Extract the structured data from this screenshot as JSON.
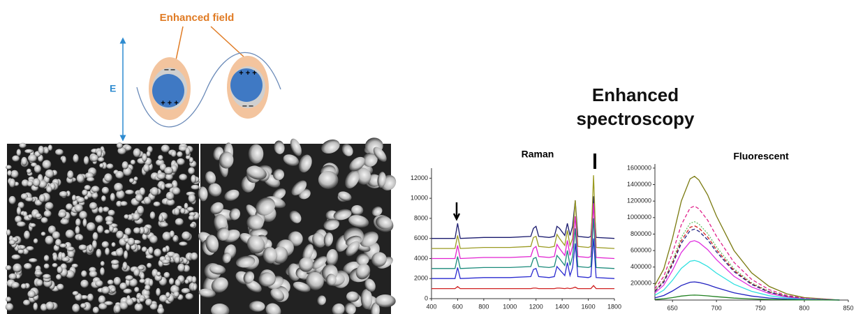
{
  "diagram": {
    "field_label": "Enhanced field",
    "e_label": "E",
    "heading": [
      "Enhanced",
      "spectroscopy"
    ]
  },
  "chart_data": [
    {
      "type": "line",
      "title": "Raman",
      "x": [
        400,
        580,
        600,
        620,
        800,
        1000,
        1160,
        1180,
        1200,
        1220,
        1300,
        1340,
        1360,
        1380,
        1420,
        1440,
        1460,
        1480,
        1500,
        1520,
        1600,
        1620,
        1640,
        1660,
        1800
      ],
      "xlim": [
        400,
        1800
      ],
      "xticks": [
        400,
        600,
        800,
        1000,
        1200,
        1400,
        1600,
        1800
      ],
      "ylim": [
        0,
        13000
      ],
      "yticks": [
        0,
        2000,
        4000,
        6000,
        8000,
        10000,
        12000
      ],
      "series": [
        {
          "color": "#1a1a6e",
          "values": [
            6000,
            6000,
            7500,
            6000,
            6100,
            6100,
            6200,
            7000,
            7200,
            6200,
            6100,
            6200,
            7200,
            7000,
            6300,
            7500,
            6300,
            7200,
            9800,
            6200,
            6100,
            6200,
            10200,
            6100,
            6000
          ]
        },
        {
          "color": "#9a9a20",
          "values": [
            5000,
            5000,
            6300,
            5000,
            5100,
            5100,
            5200,
            6100,
            6200,
            5200,
            5100,
            5200,
            6400,
            6000,
            5300,
            6800,
            5300,
            6000,
            9800,
            5200,
            5100,
            5200,
            12300,
            5100,
            5000
          ]
        },
        {
          "color": "#e020d0",
          "values": [
            4000,
            4000,
            5300,
            4000,
            4100,
            4100,
            4200,
            5000,
            5200,
            4200,
            4100,
            4200,
            5400,
            5000,
            4300,
            5800,
            4300,
            5200,
            8200,
            4200,
            4100,
            4200,
            9500,
            4100,
            4000
          ]
        },
        {
          "color": "#1a8a7a",
          "values": [
            3000,
            3000,
            4200,
            3000,
            3100,
            3100,
            3200,
            4000,
            4100,
            3200,
            3100,
            3200,
            4300,
            4000,
            3300,
            4800,
            3300,
            4200,
            7000,
            3200,
            3100,
            3200,
            8000,
            3100,
            3000
          ]
        },
        {
          "color": "#2a2ad0",
          "values": [
            2000,
            2000,
            3100,
            2000,
            2100,
            2100,
            2200,
            2900,
            3000,
            2200,
            2100,
            2200,
            3200,
            2900,
            2300,
            3600,
            2300,
            3100,
            5500,
            2200,
            2100,
            2200,
            6000,
            2100,
            2000
          ]
        },
        {
          "color": "#d02020",
          "values": [
            1000,
            1000,
            1200,
            1000,
            1000,
            1000,
            1000,
            1050,
            1050,
            1000,
            1000,
            1000,
            1050,
            1050,
            1000,
            1050,
            1000,
            1050,
            1150,
            1000,
            1000,
            1000,
            1300,
            1000,
            1000
          ]
        }
      ]
    },
    {
      "type": "line",
      "title": "Fluorescent",
      "x": [
        630,
        640,
        650,
        660,
        670,
        675,
        680,
        690,
        700,
        720,
        740,
        760,
        780,
        800,
        820,
        840
      ],
      "xlim": [
        630,
        850
      ],
      "xticks": [
        650,
        700,
        750,
        800,
        850
      ],
      "ylim": [
        0,
        1650000
      ],
      "yticks": [
        200000,
        400000,
        600000,
        800000,
        1000000,
        1200000,
        1400000,
        1600000
      ],
      "series": [
        {
          "color": "#7a7a10",
          "style": "solid",
          "values": [
            180000,
            375000,
            750000,
            1200000,
            1470000,
            1500000,
            1455000,
            1275000,
            1020000,
            600000,
            330000,
            165000,
            75000,
            30000,
            15000,
            0
          ]
        },
        {
          "color": "#e0208a",
          "style": "dashed",
          "values": [
            136800,
            285000,
            570000,
            912000,
            1117200,
            1140000,
            1105800,
            969000,
            775200,
            456000,
            250800,
            125400,
            57000,
            22800,
            11400,
            0
          ]
        },
        {
          "color": "#60c060",
          "style": "dotted",
          "values": [
            114000,
            237500,
            475000,
            760000,
            931000,
            950000,
            921500,
            807500,
            646000,
            380000,
            209000,
            104500,
            47500,
            19000,
            9500,
            0
          ]
        },
        {
          "color": "#d02020",
          "style": "dashed",
          "values": [
            108000,
            225000,
            450000,
            720000,
            882000,
            900000,
            873000,
            765000,
            612000,
            360000,
            198000,
            99000,
            45000,
            18000,
            9000,
            0
          ]
        },
        {
          "color": "#202080",
          "style": "dashed",
          "values": [
            103200,
            215000,
            430000,
            688000,
            842800,
            860000,
            834200,
            731000,
            584800,
            344000,
            189200,
            94600,
            43000,
            17200,
            8600,
            0
          ]
        },
        {
          "color": "#e030e0",
          "style": "solid",
          "values": [
            86400,
            180000,
            360000,
            576000,
            705600,
            720000,
            698400,
            612000,
            489600,
            288000,
            158400,
            79200,
            36000,
            14400,
            7200,
            0
          ]
        },
        {
          "color": "#30e0e0",
          "style": "solid",
          "values": [
            57600,
            120000,
            240000,
            384000,
            470400,
            480000,
            465600,
            408000,
            326400,
            192000,
            105600,
            52800,
            24000,
            9600,
            4800,
            0
          ]
        },
        {
          "color": "#2020c0",
          "style": "solid",
          "values": [
            26400,
            55000,
            110000,
            176000,
            215600,
            220000,
            213400,
            187000,
            149600,
            88000,
            48400,
            24200,
            11000,
            4400,
            2200,
            0
          ]
        },
        {
          "color": "#208020",
          "style": "solid",
          "values": [
            7200,
            15000,
            30000,
            48000,
            58800,
            60000,
            58200,
            51000,
            40800,
            24000,
            13200,
            6600,
            3000,
            1200,
            600,
            0
          ]
        }
      ]
    }
  ]
}
